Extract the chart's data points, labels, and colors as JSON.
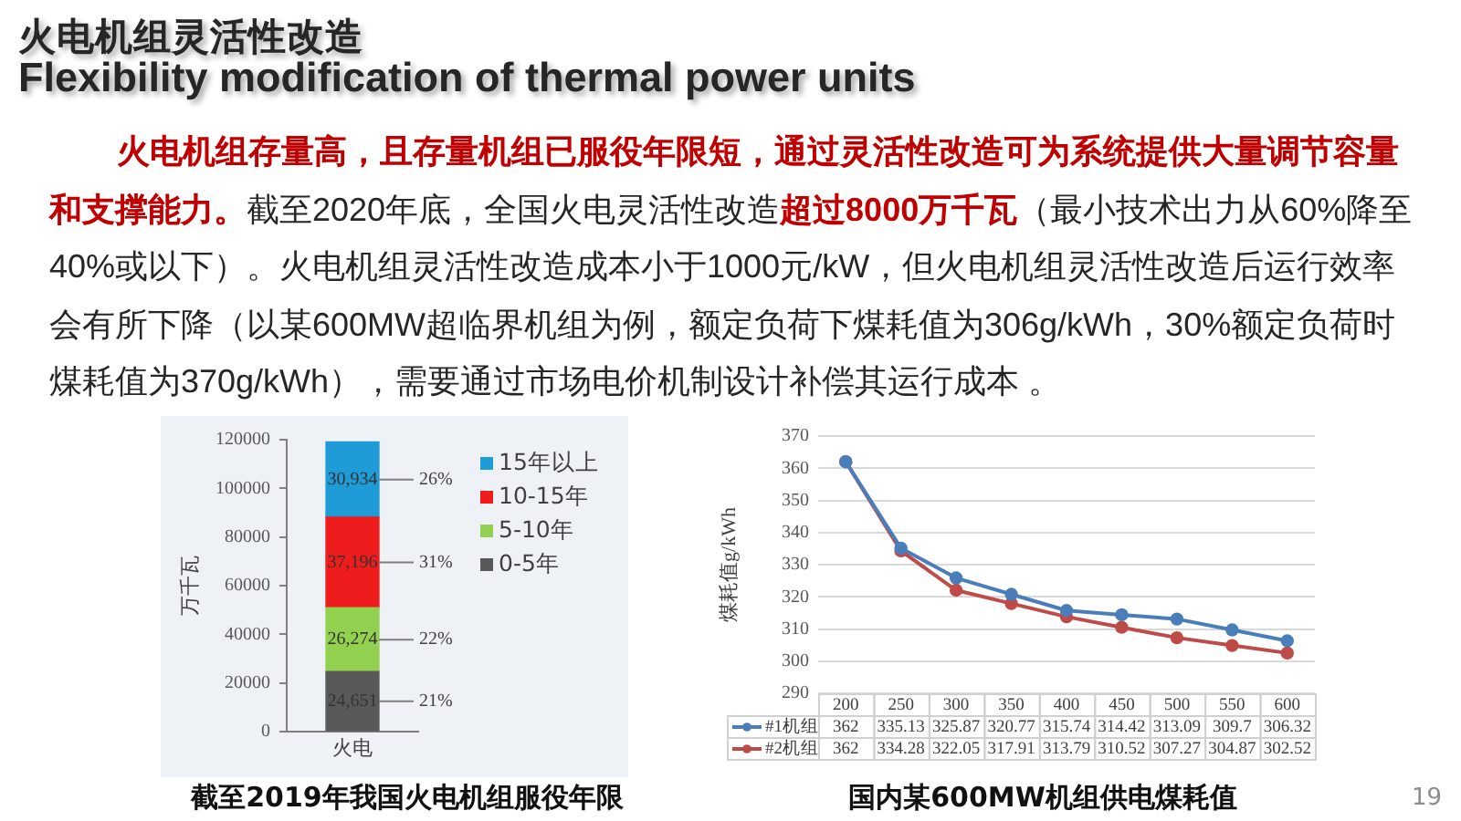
{
  "chart_data": [
    {
      "type": "other",
      "title": "火电机组灵活性改造",
      "subtitle": "Flexibility modification of thermal power units",
      "annotations": [
        "火电机组存量高，且存量机组已服役年限短，通过灵活性改造可为系统提供大量调节容量",
        "和支撑能力。",
        "截至2020年底，全国火电灵活性改造",
        "超过8000万千瓦",
        "（最小技术出力从60%降至",
        "40%或以下）。火电机组灵活性改造成本小于1000元/kW，但火电机组灵活性改造后运行效率",
        "会有所下降（以某600MW超临界机组为例，额定负荷下煤耗值为306g/kWh，30%额定负荷时",
        "煤耗值为370g/kWh），需要通过市场电价机制设计补偿其运行成本 。",
        "19"
      ]
    },
    {
      "type": "bar",
      "title": "截至2019年我国火电机组服役年限",
      "ylabel": "万千瓦",
      "categories": [
        "火电"
      ],
      "stacked": true,
      "series": [
        {
          "name": "0-5年",
          "color": "#595959",
          "values": [
            24651
          ],
          "value_labels": [
            "24,651"
          ]
        },
        {
          "name": "5-10年",
          "color": "#92d050",
          "values": [
            26274
          ],
          "value_labels": [
            "26,274"
          ]
        },
        {
          "name": "10-15年",
          "color": "#ee1c1c",
          "values": [
            37196
          ],
          "value_labels": [
            "37,196"
          ]
        },
        {
          "name": "15年以上",
          "color": "#1f9bd7",
          "values": [
            30934
          ],
          "value_labels": [
            "30,934"
          ]
        }
      ],
      "ylim": [
        0,
        120000
      ],
      "yticks": [
        0,
        20000,
        40000,
        60000,
        80000,
        100000,
        120000
      ],
      "legend": "right",
      "annotations": [
        "21%",
        "22%",
        "31%",
        "26%"
      ]
    },
    {
      "type": "line",
      "title": "国内某600MW机组供电煤耗值",
      "ylabel": "煤耗值g/kWh",
      "categories": [
        "200",
        "250",
        "300",
        "350",
        "400",
        "450",
        "500",
        "550",
        "600"
      ],
      "series": [
        {
          "name": "#1机组",
          "color": "#4a7ebb",
          "values": [
            362,
            335.13,
            325.87,
            320.77,
            315.74,
            314.42,
            313.09,
            309.7,
            306.32
          ]
        },
        {
          "name": "#2机组",
          "color": "#be4b48",
          "values": [
            362,
            334.28,
            322.05,
            317.91,
            313.79,
            310.52,
            307.27,
            304.87,
            302.52
          ]
        }
      ],
      "ylim": [
        290,
        370
      ],
      "yticks": [
        290,
        300,
        310,
        320,
        330,
        340,
        350,
        360,
        370
      ],
      "grid": "y",
      "marker": "circle",
      "legend": "bottom",
      "data_labels": true
    }
  ]
}
